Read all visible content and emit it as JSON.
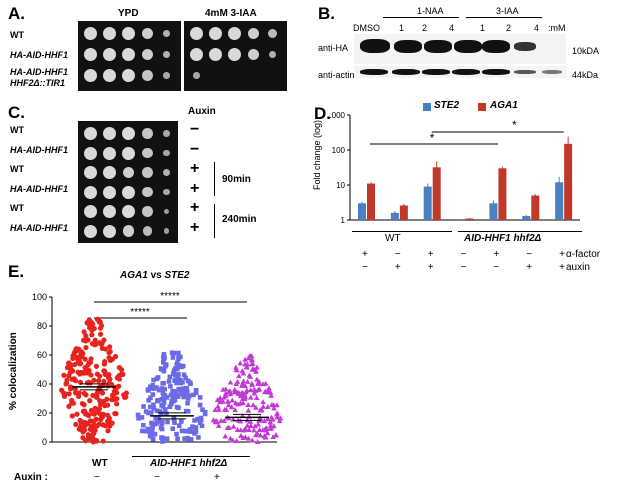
{
  "panelA": {
    "label": "A.",
    "col1": "YPD",
    "col2": "4mM 3-IAA",
    "rows": [
      "WT",
      "HA-AID-HHF1",
      "HA-AID-HHF1",
      "HHF2Δ::TIR1"
    ]
  },
  "panelB": {
    "label": "B.",
    "group1": "1-NAA",
    "group2": "3-IAA",
    "lanes": [
      "DMSO",
      "1",
      "2",
      "4",
      "1",
      "2",
      "4"
    ],
    "unit": ":mM",
    "rows": [
      "anti-HA",
      "anti-actin"
    ],
    "sizes": [
      "10kDA",
      "44kDa"
    ]
  },
  "panelC": {
    "label": "C.",
    "auxin": "Auxin",
    "rows": [
      "WT",
      "HA-AID-HHF1",
      "WT",
      "HA-AID-HHF1",
      "WT",
      "HA-AID-HHF1"
    ],
    "signs": [
      "−",
      "−",
      "+",
      "+",
      "+",
      "+"
    ],
    "times": [
      "90min",
      "240min"
    ]
  },
  "panelD": {
    "label": "D.",
    "star": "*",
    "xlabel_wt": "WT",
    "xlabel_mut": "AID-HHF1 hhf2Δ",
    "row1_label": "α-factor",
    "row2_label": "auxin",
    "row1": [
      "+",
      "−",
      "+",
      "−",
      "+",
      "−",
      "+"
    ],
    "row2": [
      "−",
      "+",
      "+",
      "−",
      "−",
      "+",
      "+"
    ],
    "colors": {
      "STE2": "#4a7fc1",
      "AGA1": "#c0392b"
    }
  },
  "panelE": {
    "label": "E.",
    "title_a": "AGA1",
    "title_vs": " vs ",
    "title_b": "STE2",
    "sig": "*****",
    "xlabel_wt": "WT",
    "xlabel_mut": "AID-HHF1 hhf2Δ",
    "auxin_label": "Auxin :",
    "auxin_signs": [
      "−",
      "−",
      "+"
    ],
    "colors": [
      "#e8231e",
      "#6b6be8",
      "#c13ad6"
    ]
  },
  "chart_data": [
    {
      "type": "bar",
      "panel": "D",
      "ylabel": "Fold change (log)",
      "yscale": "log",
      "ylim": [
        1,
        1000
      ],
      "yticks": [
        "1",
        "10",
        "100",
        "1000"
      ],
      "categories": [
        "WT +αF",
        "WT +aux",
        "WT +αF+aux",
        "mut",
        "mut +αF",
        "mut +aux",
        "mut +αF+aux"
      ],
      "series": [
        {
          "name": "STE2",
          "values": [
            3.0,
            1.6,
            9.0,
            1.0,
            3.0,
            1.3,
            12.0
          ],
          "errors": [
            0.3,
            0.2,
            2.0,
            0.05,
            0.6,
            0.1,
            5.0
          ]
        },
        {
          "name": "AGA1",
          "values": [
            11.0,
            2.6,
            32.0,
            1.1,
            30.0,
            5.0,
            150.0
          ],
          "errors": [
            1.0,
            0.3,
            15.0,
            0.05,
            3.0,
            0.5,
            90.0
          ]
        }
      ],
      "legend": "top"
    },
    {
      "type": "scatter",
      "panel": "E",
      "ylabel": "% colocalization",
      "ylim": [
        0,
        100
      ],
      "yticks": [
        "0",
        "20",
        "40",
        "60",
        "80",
        "100"
      ],
      "categories": [
        "WT",
        "AID-HHF1 hhf2Δ −",
        "AID-HHF1 hhf2Δ +"
      ],
      "series": [
        {
          "name": "WT",
          "mean": 38,
          "range": [
            0,
            85
          ]
        },
        {
          "name": "mut −auxin",
          "mean": 18,
          "range": [
            0,
            62
          ]
        },
        {
          "name": "mut +auxin",
          "mean": 17,
          "range": [
            0,
            60
          ]
        }
      ]
    }
  ]
}
